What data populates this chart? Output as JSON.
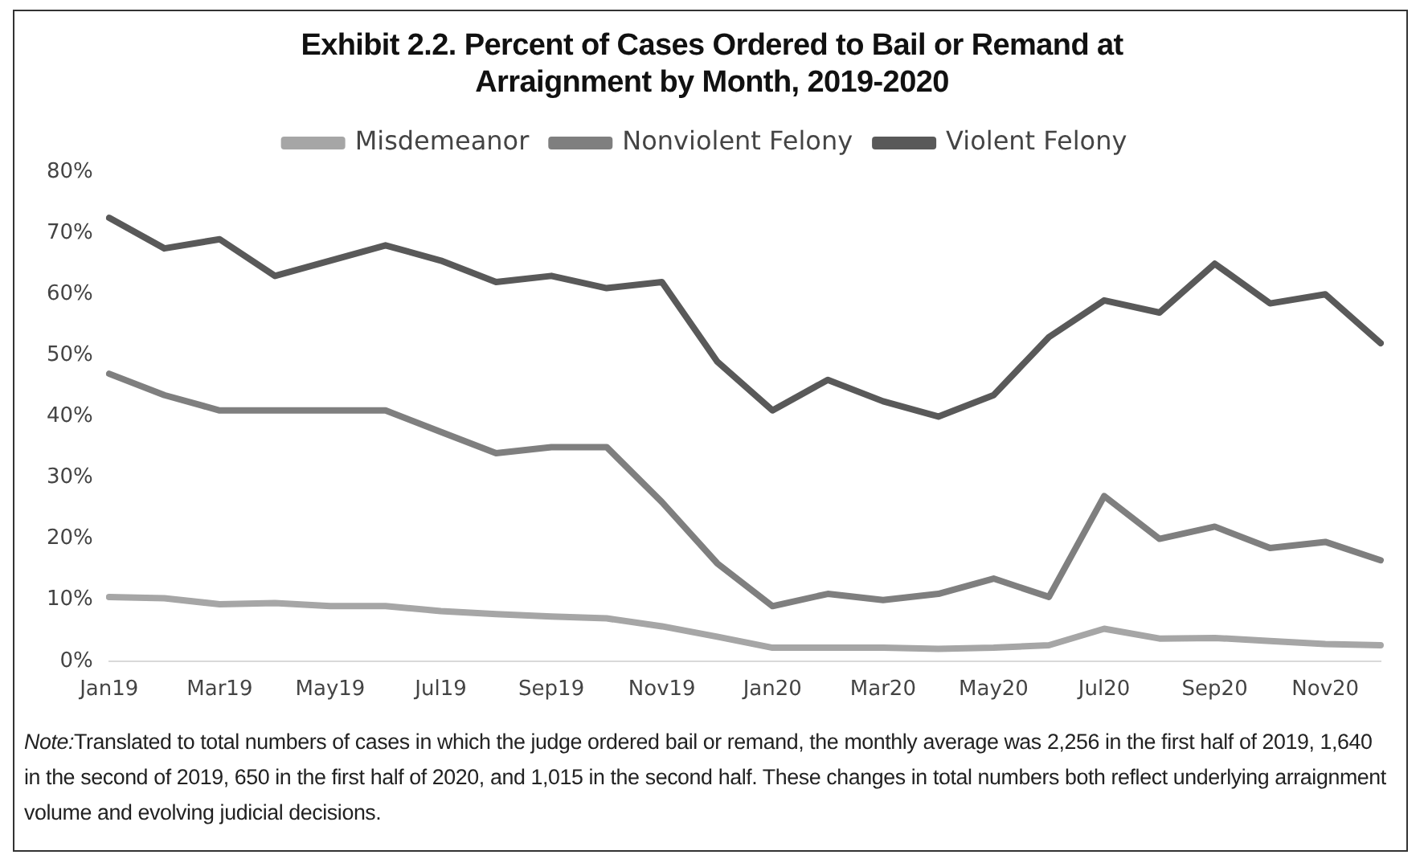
{
  "chart_data": {
    "type": "line",
    "title": "Exhibit 2.2. Percent of Cases Ordered to Bail or Remand at Arraignment by Month, 2019-2020",
    "categories": [
      "Jan19",
      null,
      "Mar19",
      null,
      "May19",
      null,
      "Jul19",
      null,
      "Sep19",
      null,
      "Nov19",
      null,
      "Jan20",
      null,
      "Mar20",
      null,
      "May20",
      null,
      "Jul20",
      null,
      "Sep20",
      null,
      "Nov20",
      null
    ],
    "series": [
      {
        "name": "Misdemeanor",
        "color": "#a6a6a6",
        "values": [
          10.5,
          10.3,
          9.3,
          9.5,
          9,
          9,
          8.2,
          7.7,
          7.3,
          7,
          5.7,
          4,
          2.2,
          2.2,
          2.2,
          2,
          2.2,
          2.6,
          5.3,
          3.7,
          3.8,
          3.3,
          2.8,
          2.6
        ]
      },
      {
        "name": "Nonviolent Felony",
        "color": "#7f7f7f",
        "values": [
          47,
          43.5,
          41,
          41,
          41,
          41,
          37.5,
          34,
          35,
          35,
          26,
          16,
          9,
          11,
          10,
          11,
          13.5,
          10.5,
          27,
          20,
          22,
          18.5,
          19.5,
          16.5
        ]
      },
      {
        "name": "Violent Felony",
        "color": "#595959",
        "values": [
          72.5,
          67.5,
          69,
          63,
          65.5,
          68,
          65.5,
          62,
          63,
          61,
          62,
          49,
          41,
          46,
          42.5,
          40,
          43.5,
          53,
          59,
          57,
          65,
          58.5,
          60,
          52
        ]
      }
    ],
    "ylim": [
      0,
      80
    ],
    "yticks": [
      {
        "value": 0,
        "label": "0%"
      },
      {
        "value": 10,
        "label": "10%"
      },
      {
        "value": 20,
        "label": "20%"
      },
      {
        "value": 30,
        "label": "30%"
      },
      {
        "value": 40,
        "label": "40%"
      },
      {
        "value": 50,
        "label": "50%"
      },
      {
        "value": 60,
        "label": "60%"
      },
      {
        "value": 70,
        "label": "70%"
      },
      {
        "value": 80,
        "label": "80%"
      }
    ],
    "grid": false,
    "legend": "top",
    "marker": "none",
    "line_style": "solid",
    "annotations": [
      "Note:Translated to total numbers of cases in which the judge ordered bail or remand, the monthly average was 2,256 in the first half of 2019, 1,640 in the second of 2019, 650 in the first half of 2020, and 1,015 in the second half. These changes in total numbers both reflect underlying arraignment volume and evolving judicial decisions."
    ]
  }
}
